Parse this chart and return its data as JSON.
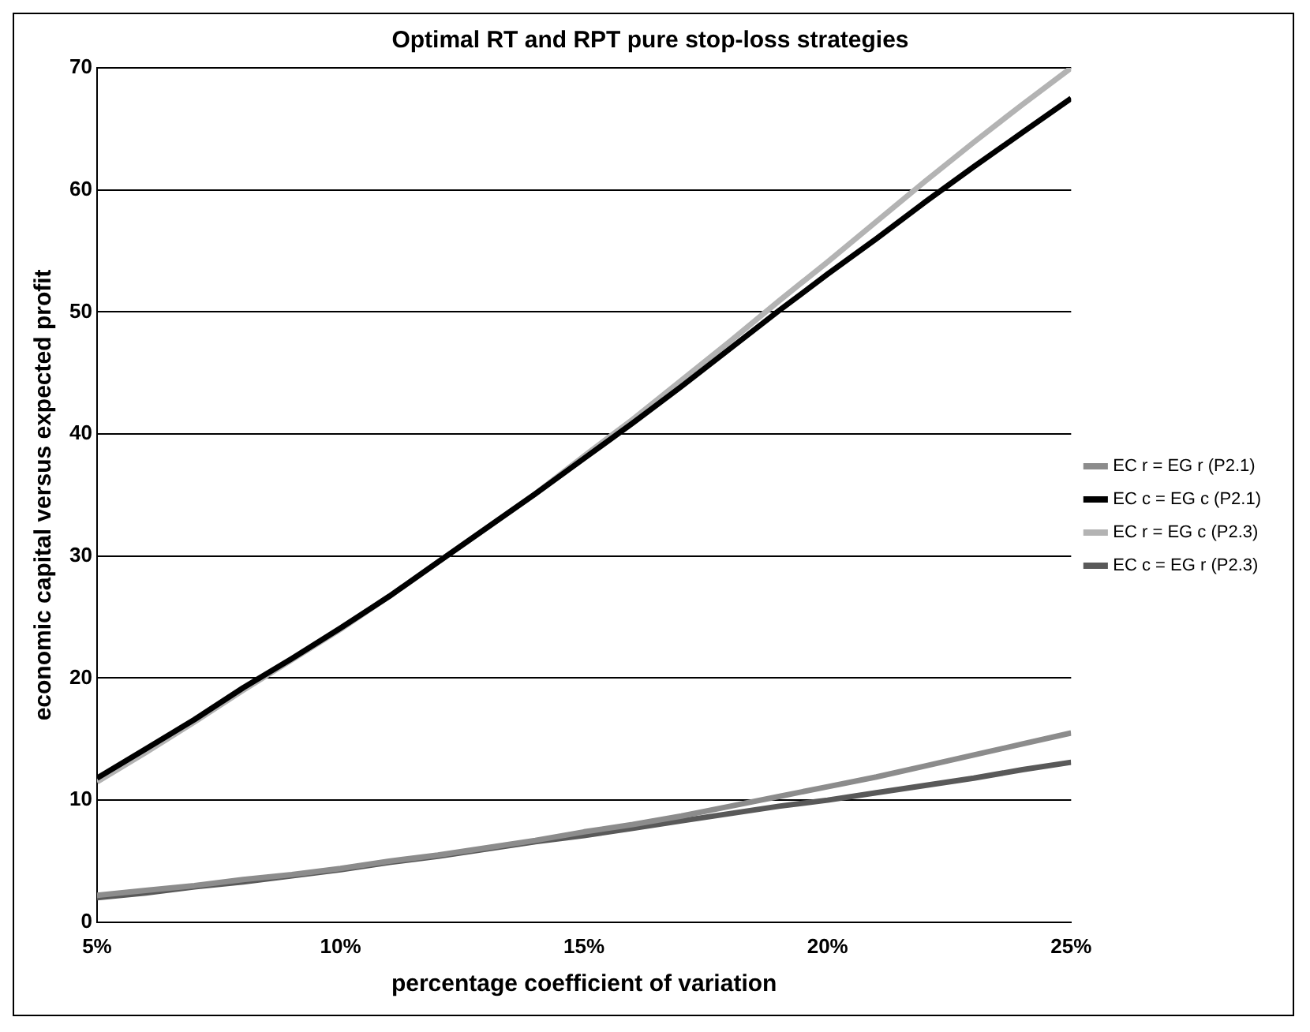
{
  "chart_data": {
    "type": "line",
    "title": "Optimal RT and RPT pure stop-loss strategies",
    "xlabel": "percentage coefficient of variation",
    "ylabel": "economic capital versus expected profit",
    "x": [
      5,
      6,
      7,
      8,
      9,
      10,
      11,
      12,
      13,
      14,
      15,
      16,
      17,
      18,
      19,
      20,
      21,
      22,
      23,
      24,
      25
    ],
    "xlim": [
      5,
      25
    ],
    "xticks": [
      {
        "value": 5,
        "label": "5%"
      },
      {
        "value": 10,
        "label": "10%"
      },
      {
        "value": 15,
        "label": "15%"
      },
      {
        "value": 20,
        "label": "20%"
      },
      {
        "value": 25,
        "label": "25%"
      }
    ],
    "ylim": [
      0,
      70
    ],
    "yticks": [
      0,
      10,
      20,
      30,
      40,
      50,
      60,
      70
    ],
    "grid": "y",
    "legend": "right",
    "marker": "none",
    "line_style": "solid",
    "series": [
      {
        "name": "EC r = EG r (P2.1)",
        "color": "#8c8c8c",
        "values": [
          2.2,
          2.6,
          3.0,
          3.5,
          3.9,
          4.4,
          5.0,
          5.5,
          6.1,
          6.7,
          7.4,
          8.0,
          8.7,
          9.5,
          10.3,
          11.1,
          11.9,
          12.8,
          13.7,
          14.6,
          15.5
        ]
      },
      {
        "name": "EC c = EG c (P2.1)",
        "color": "#000000",
        "values": [
          11.8,
          14.2,
          16.6,
          19.2,
          21.6,
          24.1,
          26.7,
          29.5,
          32.3,
          35.1,
          38,
          40.9,
          43.9,
          47,
          50.1,
          53.1,
          56,
          59,
          61.9,
          64.7,
          67.5
        ]
      },
      {
        "name": "EC r = EG c (P2.3)",
        "color": "#b3b3b3",
        "values": [
          11.5,
          13.9,
          16.4,
          19.0,
          21.5,
          24.0,
          26.7,
          29.5,
          32.3,
          35.1,
          38.2,
          41.2,
          44.4,
          47.6,
          50.9,
          54.1,
          57.4,
          60.7,
          63.9,
          67,
          70
        ]
      },
      {
        "name": "EC c = EG r (P2.3)",
        "color": "#595959",
        "values": [
          2.0,
          2.4,
          2.9,
          3.3,
          3.8,
          4.3,
          4.9,
          5.4,
          6.0,
          6.6,
          7.1,
          7.7,
          8.3,
          8.9,
          9.5,
          10.0,
          10.6,
          11.2,
          11.8,
          12.5,
          13.1
        ]
      }
    ]
  }
}
